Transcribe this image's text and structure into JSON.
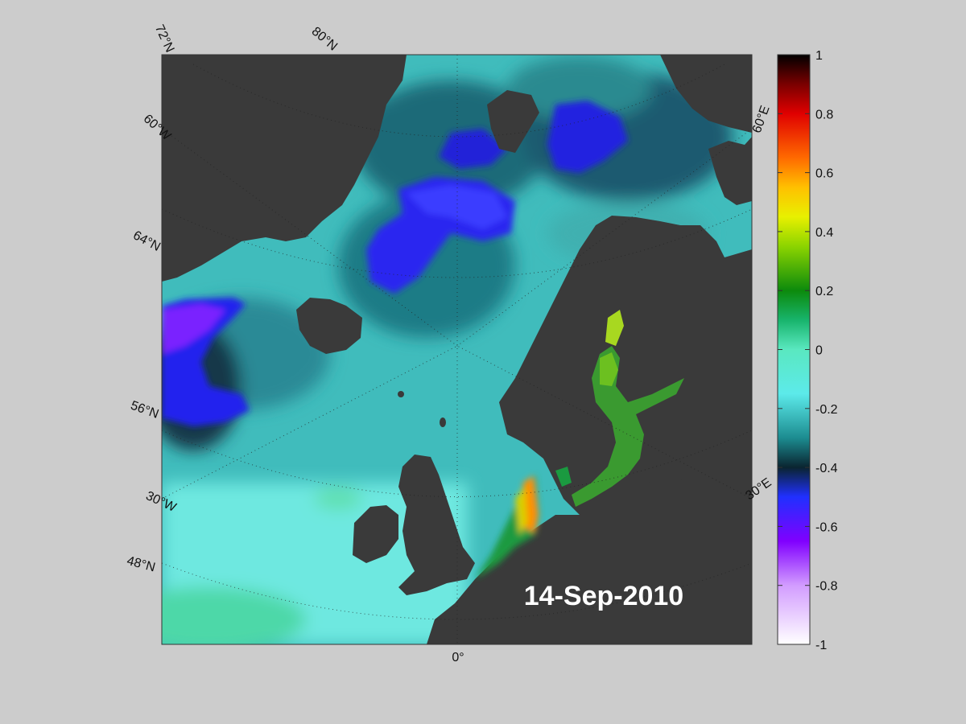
{
  "map": {
    "date": "14-Sep-2010",
    "latitude_labels": [
      "72°N",
      "80°N",
      "64°N",
      "56°N",
      "48°N"
    ],
    "longitude_labels": [
      "60°W",
      "30°W",
      "0°",
      "30°E",
      "60°E"
    ],
    "colors": {
      "land": "#3a3a3a",
      "ocean_base": "#3fb8b8",
      "background": "#cccccc"
    }
  },
  "colorbar": {
    "min": -1,
    "max": 1,
    "tick_labels": [
      "1",
      "0.8",
      "0.6",
      "0.4",
      "0.2",
      "0",
      "-0.2",
      "-0.4",
      "-0.6",
      "-0.8",
      "-1"
    ],
    "colormap_stops": [
      {
        "value": 1.0,
        "color": "#000000"
      },
      {
        "value": 0.9,
        "color": "#7a0000"
      },
      {
        "value": 0.8,
        "color": "#e00000"
      },
      {
        "value": 0.65,
        "color": "#ff6a00"
      },
      {
        "value": 0.55,
        "color": "#ffc000"
      },
      {
        "value": 0.45,
        "color": "#e8f000"
      },
      {
        "value": 0.35,
        "color": "#8cd400"
      },
      {
        "value": 0.2,
        "color": "#0c8a0c"
      },
      {
        "value": 0.1,
        "color": "#18b46c"
      },
      {
        "value": 0.0,
        "color": "#5ae8c0"
      },
      {
        "value": -0.15,
        "color": "#5ceaea"
      },
      {
        "value": -0.3,
        "color": "#1c8c90"
      },
      {
        "value": -0.4,
        "color": "#0a2430"
      },
      {
        "value": -0.5,
        "color": "#2030ff"
      },
      {
        "value": -0.65,
        "color": "#8000ff"
      },
      {
        "value": -0.8,
        "color": "#d29cff"
      },
      {
        "value": -1.0,
        "color": "#ffffff"
      }
    ]
  }
}
